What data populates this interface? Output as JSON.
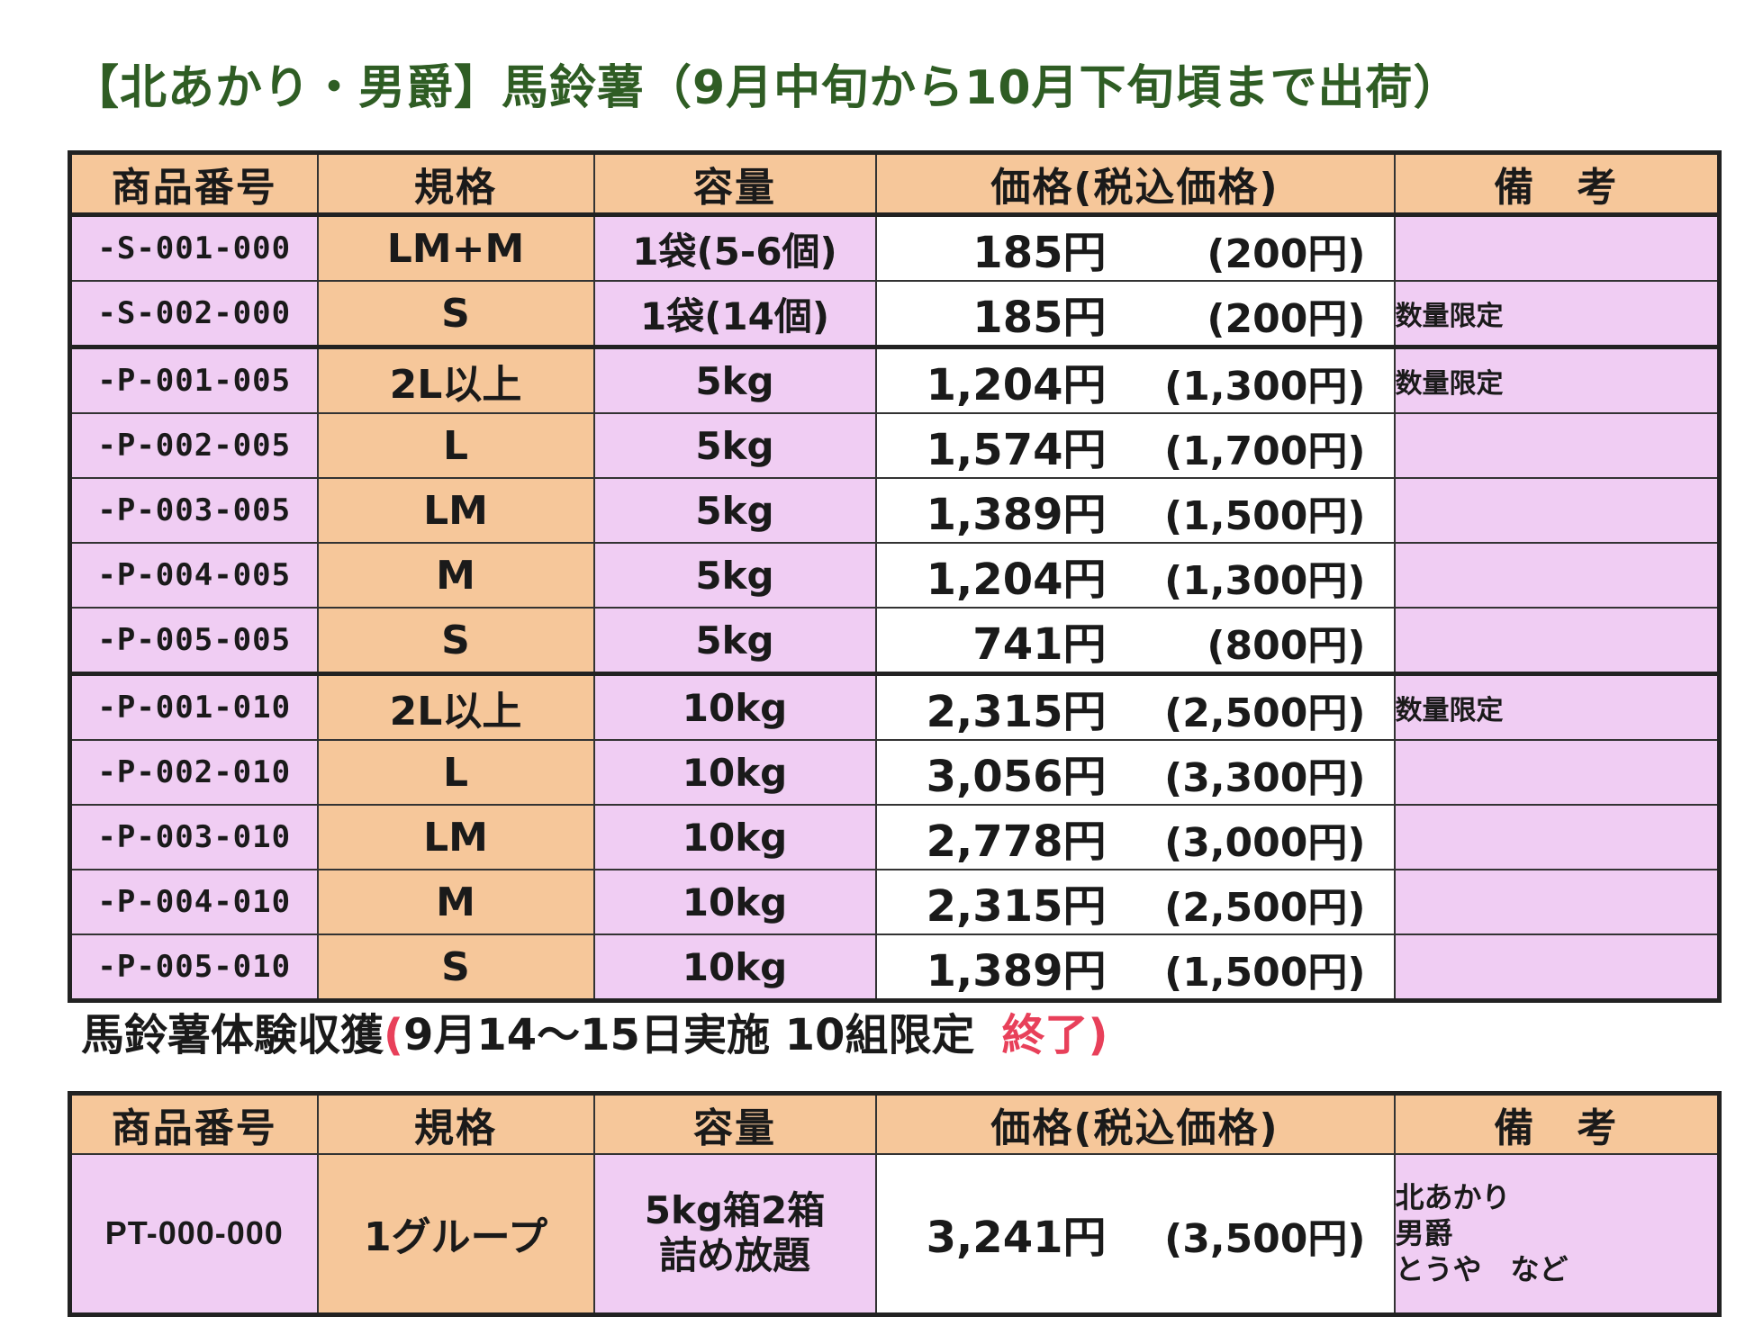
{
  "title1": "【北あかり・男爵】馬鈴薯（9月中旬から10月下旬頃まで出荷）",
  "title2": {
    "main": "馬鈴薯体験収獲",
    "paren_open": "(",
    "detail": "9月14〜15日実施 10組限定",
    "ended": "終了",
    "paren_close": ")"
  },
  "headers": {
    "code": "商品番号",
    "spec": "規格",
    "capacity": "容量",
    "price": "価格(税込価格)",
    "note": "備　考"
  },
  "table1": {
    "rows": [
      {
        "code": "-S-001-000",
        "spec": "LM+M",
        "capacity": "1袋(5-6個)",
        "price": "185円",
        "price_tax": "(200円)",
        "note": ""
      },
      {
        "code": "-S-002-000",
        "spec": "S",
        "capacity": "1袋(14個)",
        "price": "185円",
        "price_tax": "(200円)",
        "note": "数量限定"
      },
      {
        "code": "-P-001-005",
        "spec": "2L以上",
        "capacity": "5kg",
        "price": "1,204円",
        "price_tax": "(1,300円)",
        "note": "数量限定"
      },
      {
        "code": "-P-002-005",
        "spec": "L",
        "capacity": "5kg",
        "price": "1,574円",
        "price_tax": "(1,700円)",
        "note": ""
      },
      {
        "code": "-P-003-005",
        "spec": "LM",
        "capacity": "5kg",
        "price": "1,389円",
        "price_tax": "(1,500円)",
        "note": ""
      },
      {
        "code": "-P-004-005",
        "spec": "M",
        "capacity": "5kg",
        "price": "1,204円",
        "price_tax": "(1,300円)",
        "note": ""
      },
      {
        "code": "-P-005-005",
        "spec": "S",
        "capacity": "5kg",
        "price": "741円",
        "price_tax": "(800円)",
        "note": ""
      },
      {
        "code": "-P-001-010",
        "spec": "2L以上",
        "capacity": "10kg",
        "price": "2,315円",
        "price_tax": "(2,500円)",
        "note": "数量限定"
      },
      {
        "code": "-P-002-010",
        "spec": "L",
        "capacity": "10kg",
        "price": "3,056円",
        "price_tax": "(3,300円)",
        "note": ""
      },
      {
        "code": "-P-003-010",
        "spec": "LM",
        "capacity": "10kg",
        "price": "2,778円",
        "price_tax": "(3,000円)",
        "note": ""
      },
      {
        "code": "-P-004-010",
        "spec": "M",
        "capacity": "10kg",
        "price": "2,315円",
        "price_tax": "(2,500円)",
        "note": ""
      },
      {
        "code": "-P-005-010",
        "spec": "S",
        "capacity": "10kg",
        "price": "1,389円",
        "price_tax": "(1,500円)",
        "note": ""
      }
    ]
  },
  "table2": {
    "row": {
      "code": "PT-000-000",
      "spec": "1グループ",
      "capacity_line1": "5kg箱2箱",
      "capacity_line2": "詰め放題",
      "price": "3,241円",
      "price_tax": "(3,500円)",
      "note_line1": "北あかり",
      "note_line2": "男爵",
      "note_line3": "とうや　など"
    }
  },
  "colors": {
    "header_bg": "#f6c79a",
    "pink_bg": "#f0cdf3",
    "title_green": "#2f5d24",
    "accent_red": "#e8405a"
  }
}
